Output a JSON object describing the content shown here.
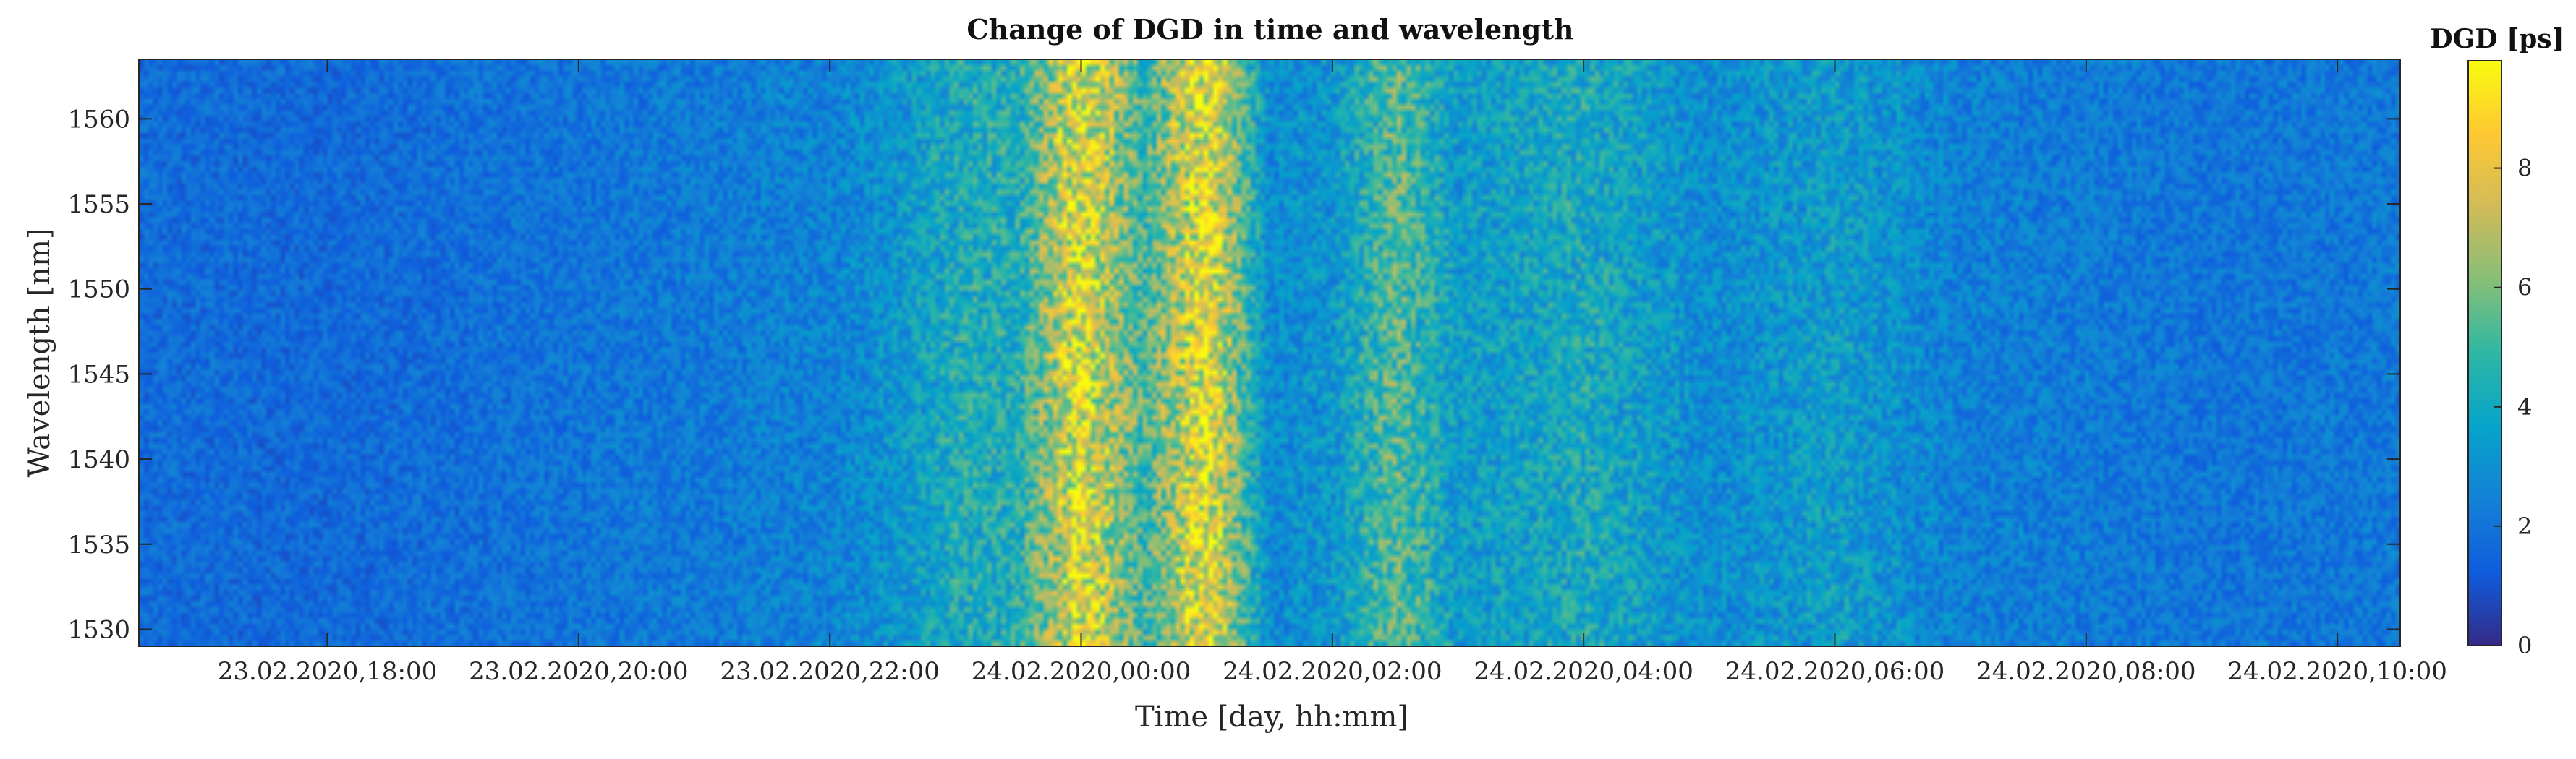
{
  "chart_data": {
    "type": "heatmap",
    "title": "Change of DGD in time and wavelength",
    "xlabel": "Time [day, hh:mm]",
    "ylabel": "Wavelength [nm]",
    "x_tick_labels": [
      "23.02.2020,18:00",
      "23.02.2020,20:00",
      "23.02.2020,22:00",
      "24.02.2020,00:00",
      "24.02.2020,02:00",
      "24.02.2020,04:00",
      "24.02.2020,06:00",
      "24.02.2020,08:00",
      "24.02.2020,10:00"
    ],
    "y_ticks": [
      1530,
      1535,
      1540,
      1545,
      1550,
      1555,
      1560
    ],
    "ylim": [
      1529,
      1563.5
    ],
    "colorbar": {
      "title": "DGD [ps]",
      "ticks": [
        0,
        2,
        4,
        6,
        8
      ],
      "range": [
        0,
        9.8
      ],
      "colormap": "parula"
    },
    "dgd_profile_over_time": {
      "description_of_bands": "low DGD (~1-2 ps) from 23.02 16:30 to 23.02 22:00, rising to high DGD (~7-9 ps) near 24.02 00:00-01:30, intermittent moderate bands (~3-6 ps) until ~24.02 07:00, then low (~1-2 ps) to 24.02 10:30",
      "times": [
        "23.02.2020,17:00",
        "23.02.2020,18:00",
        "23.02.2020,19:00",
        "23.02.2020,20:00",
        "23.02.2020,21:00",
        "23.02.2020,22:00",
        "23.02.2020,22:30",
        "23.02.2020,23:00",
        "23.02.2020,23:30",
        "24.02.2020,00:00",
        "24.02.2020,00:30",
        "24.02.2020,01:00",
        "24.02.2020,01:30",
        "24.02.2020,02:00",
        "24.02.2020,02:30",
        "24.02.2020,03:00",
        "24.02.2020,03:30",
        "24.02.2020,04:00",
        "24.02.2020,04:30",
        "24.02.2020,05:00",
        "24.02.2020,06:00",
        "24.02.2020,07:00",
        "24.02.2020,08:00",
        "24.02.2020,09:00",
        "24.02.2020,10:00"
      ],
      "typical_dgd_ps": [
        1.8,
        1.7,
        1.9,
        2.1,
        2.3,
        2.6,
        3.2,
        4.3,
        4.4,
        8.6,
        5.0,
        8.8,
        2.9,
        3.3,
        5.6,
        3.5,
        3.8,
        4.2,
        3.6,
        2.9,
        3.6,
        2.5,
        2.3,
        2.1,
        2.2
      ]
    }
  }
}
